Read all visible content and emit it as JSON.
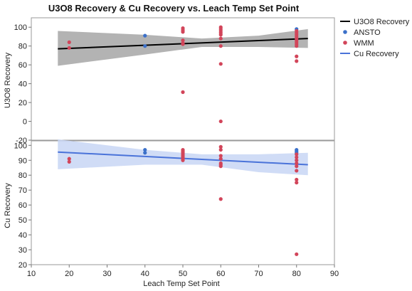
{
  "chart_data": {
    "type": "scatter",
    "title": "U3O8 Recovery & Cu Recovery vs. Leach Temp Set Point",
    "xlabel": "Leach Temp Set Point",
    "xlim": [
      10,
      90
    ],
    "x_ticks": [
      10,
      20,
      30,
      40,
      50,
      60,
      70,
      80,
      90
    ],
    "colors": {
      "u3o8_fit": "#000000",
      "u3o8_band": "#a6a6a6",
      "cu_fit": "#4a73d9",
      "cu_band": "#c8d6f5",
      "ANSTO": "#3b70c9",
      "WMM": "#d2455a"
    },
    "legend": {
      "placement": "right",
      "items": [
        {
          "label": "U3O8 Recovery",
          "kind": "line",
          "color": "#000000"
        },
        {
          "label": "ANSTO",
          "kind": "point",
          "color": "#3b70c9"
        },
        {
          "label": "WMM",
          "kind": "point",
          "color": "#d2455a"
        },
        {
          "label": "Cu Recovery",
          "kind": "line",
          "color": "#4a73d9"
        }
      ]
    },
    "panels": [
      {
        "id": "u3o8",
        "ylabel": "U3O8 Recovery",
        "ylim": [
          -20,
          110
        ],
        "y_ticks": [
          -20,
          0,
          20,
          40,
          60,
          80,
          100
        ],
        "fit": {
          "x": [
            17,
            83
          ],
          "y": [
            77,
            88
          ]
        },
        "band_upper": [
          [
            17,
            96
          ],
          [
            40,
            92
          ],
          [
            55,
            88
          ],
          [
            70,
            91
          ],
          [
            83,
            98
          ]
        ],
        "band_lower": [
          [
            17,
            59
          ],
          [
            40,
            71
          ],
          [
            55,
            79
          ],
          [
            70,
            79
          ],
          [
            83,
            78
          ]
        ],
        "points": [
          {
            "x": 20,
            "y": 84,
            "group": "WMM"
          },
          {
            "x": 20,
            "y": 78,
            "group": "WMM"
          },
          {
            "x": 40,
            "y": 91,
            "group": "ANSTO"
          },
          {
            "x": 40,
            "y": 80,
            "group": "ANSTO"
          },
          {
            "x": 50,
            "y": 99,
            "group": "WMM"
          },
          {
            "x": 50,
            "y": 97,
            "group": "WMM"
          },
          {
            "x": 50,
            "y": 95,
            "group": "WMM"
          },
          {
            "x": 50,
            "y": 86,
            "group": "WMM"
          },
          {
            "x": 50,
            "y": 83,
            "group": "WMM"
          },
          {
            "x": 50,
            "y": 82,
            "group": "WMM"
          },
          {
            "x": 50,
            "y": 31,
            "group": "WMM"
          },
          {
            "x": 60,
            "y": 100,
            "group": "WMM"
          },
          {
            "x": 60,
            "y": 98,
            "group": "WMM"
          },
          {
            "x": 60,
            "y": 96,
            "group": "WMM"
          },
          {
            "x": 60,
            "y": 94,
            "group": "WMM"
          },
          {
            "x": 60,
            "y": 92,
            "group": "WMM"
          },
          {
            "x": 60,
            "y": 88,
            "group": "WMM"
          },
          {
            "x": 60,
            "y": 80,
            "group": "WMM"
          },
          {
            "x": 60,
            "y": 61,
            "group": "WMM"
          },
          {
            "x": 60,
            "y": 0,
            "group": "WMM"
          },
          {
            "x": 80,
            "y": 98,
            "group": "ANSTO"
          },
          {
            "x": 80,
            "y": 96,
            "group": "WMM"
          },
          {
            "x": 80,
            "y": 94,
            "group": "WMM"
          },
          {
            "x": 80,
            "y": 92,
            "group": "WMM"
          },
          {
            "x": 80,
            "y": 90,
            "group": "WMM"
          },
          {
            "x": 80,
            "y": 88,
            "group": "WMM"
          },
          {
            "x": 80,
            "y": 86,
            "group": "WMM"
          },
          {
            "x": 80,
            "y": 84,
            "group": "WMM"
          },
          {
            "x": 80,
            "y": 82,
            "group": "WMM"
          },
          {
            "x": 80,
            "y": 80,
            "group": "WMM"
          },
          {
            "x": 80,
            "y": 69,
            "group": "WMM"
          },
          {
            "x": 80,
            "y": 64,
            "group": "WMM"
          }
        ]
      },
      {
        "id": "cu",
        "ylabel": "Cu Recovery",
        "ylim": [
          20,
          103
        ],
        "y_ticks": [
          20,
          30,
          40,
          50,
          60,
          70,
          80,
          90,
          100
        ],
        "fit": {
          "x": [
            17,
            83
          ],
          "y": [
            95.5,
            87
          ]
        },
        "band_upper": [
          [
            17,
            104
          ],
          [
            40,
            97
          ],
          [
            55,
            94
          ],
          [
            70,
            94
          ],
          [
            83,
            95
          ]
        ],
        "band_lower": [
          [
            17,
            84
          ],
          [
            40,
            87
          ],
          [
            55,
            87
          ],
          [
            70,
            82
          ],
          [
            83,
            80
          ]
        ],
        "points": [
          {
            "x": 20,
            "y": 91,
            "group": "WMM"
          },
          {
            "x": 20,
            "y": 89,
            "group": "WMM"
          },
          {
            "x": 40,
            "y": 97,
            "group": "ANSTO"
          },
          {
            "x": 40,
            "y": 95,
            "group": "ANSTO"
          },
          {
            "x": 50,
            "y": 97,
            "group": "WMM"
          },
          {
            "x": 50,
            "y": 96,
            "group": "WMM"
          },
          {
            "x": 50,
            "y": 95,
            "group": "WMM"
          },
          {
            "x": 50,
            "y": 94,
            "group": "WMM"
          },
          {
            "x": 50,
            "y": 93,
            "group": "WMM"
          },
          {
            "x": 50,
            "y": 92,
            "group": "WMM"
          },
          {
            "x": 50,
            "y": 91,
            "group": "WMM"
          },
          {
            "x": 50,
            "y": 90,
            "group": "WMM"
          },
          {
            "x": 60,
            "y": 99,
            "group": "WMM"
          },
          {
            "x": 60,
            "y": 97,
            "group": "WMM"
          },
          {
            "x": 60,
            "y": 93,
            "group": "WMM"
          },
          {
            "x": 60,
            "y": 91,
            "group": "WMM"
          },
          {
            "x": 60,
            "y": 88,
            "group": "WMM"
          },
          {
            "x": 60,
            "y": 87,
            "group": "WMM"
          },
          {
            "x": 60,
            "y": 86,
            "group": "WMM"
          },
          {
            "x": 60,
            "y": 64,
            "group": "WMM"
          },
          {
            "x": 80,
            "y": 97,
            "group": "ANSTO"
          },
          {
            "x": 80,
            "y": 96,
            "group": "ANSTO"
          },
          {
            "x": 80,
            "y": 95,
            "group": "ANSTO"
          },
          {
            "x": 80,
            "y": 94,
            "group": "WMM"
          },
          {
            "x": 80,
            "y": 92,
            "group": "WMM"
          },
          {
            "x": 80,
            "y": 90,
            "group": "WMM"
          },
          {
            "x": 80,
            "y": 88,
            "group": "WMM"
          },
          {
            "x": 80,
            "y": 86,
            "group": "WMM"
          },
          {
            "x": 80,
            "y": 83,
            "group": "WMM"
          },
          {
            "x": 80,
            "y": 77,
            "group": "WMM"
          },
          {
            "x": 80,
            "y": 75,
            "group": "WMM"
          },
          {
            "x": 80,
            "y": 27,
            "group": "WMM"
          }
        ]
      }
    ]
  }
}
